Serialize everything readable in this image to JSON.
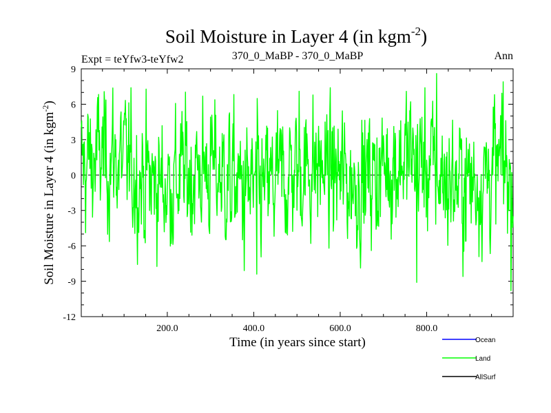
{
  "chart_data": {
    "type": "line",
    "title": "Soil Moisture in Layer 4 (in kgm",
    "title_sup": "-2",
    "title_close": ")",
    "subtitle_left": "Expt = teYfw3-teYfw2",
    "subtitle_center": "370_0_MaBP - 370_0_MaBP",
    "subtitle_right": "Ann",
    "xlabel": "Time (in years since start)",
    "ylabel": "Soil Moisture in Layer 4 (in kgm",
    "ylabel_sup": "-2",
    "ylabel_close": ")",
    "xlim": [
      1,
      1000
    ],
    "ylim": [
      -12,
      9
    ],
    "x_ticks": [
      200,
      400,
      600,
      800
    ],
    "x_tick_labels": [
      "200.0",
      "400.0",
      "600.0",
      "800.0"
    ],
    "y_ticks": [
      9,
      6,
      3,
      0,
      -3,
      -6,
      -9,
      -12
    ],
    "y_tick_labels": [
      "9",
      "6",
      "3",
      "0",
      "-3",
      "-6",
      "-9",
      "-12"
    ],
    "zero_line": {
      "value": 0,
      "style": "dashed"
    },
    "series": [
      {
        "name": "Ocean",
        "color": "#0000ff",
        "values": []
      },
      {
        "name": "Land",
        "color": "#00ff00",
        "values": [],
        "approx_range": [
          -9.8,
          8.6
        ],
        "notable_peaks": [
          {
            "x": 823,
            "y": 8.6
          },
          {
            "x": 977,
            "y": 7.9
          },
          {
            "x": 505,
            "y": 7.1
          }
        ],
        "notable_troughs": [
          {
            "x": 777,
            "y": -9.1
          },
          {
            "x": 995,
            "y": -9.8
          },
          {
            "x": 378,
            "y": -8.1
          },
          {
            "x": 407,
            "y": -8.4
          }
        ]
      },
      {
        "name": "AllSurf",
        "color": "#000000",
        "values": []
      }
    ],
    "legend": [
      {
        "label": "Ocean",
        "color": "#0000ff"
      },
      {
        "label": "Land",
        "color": "#00ff00"
      },
      {
        "label": "AllSurf",
        "color": "#000000"
      }
    ],
    "legend_position": "bottom-right"
  }
}
